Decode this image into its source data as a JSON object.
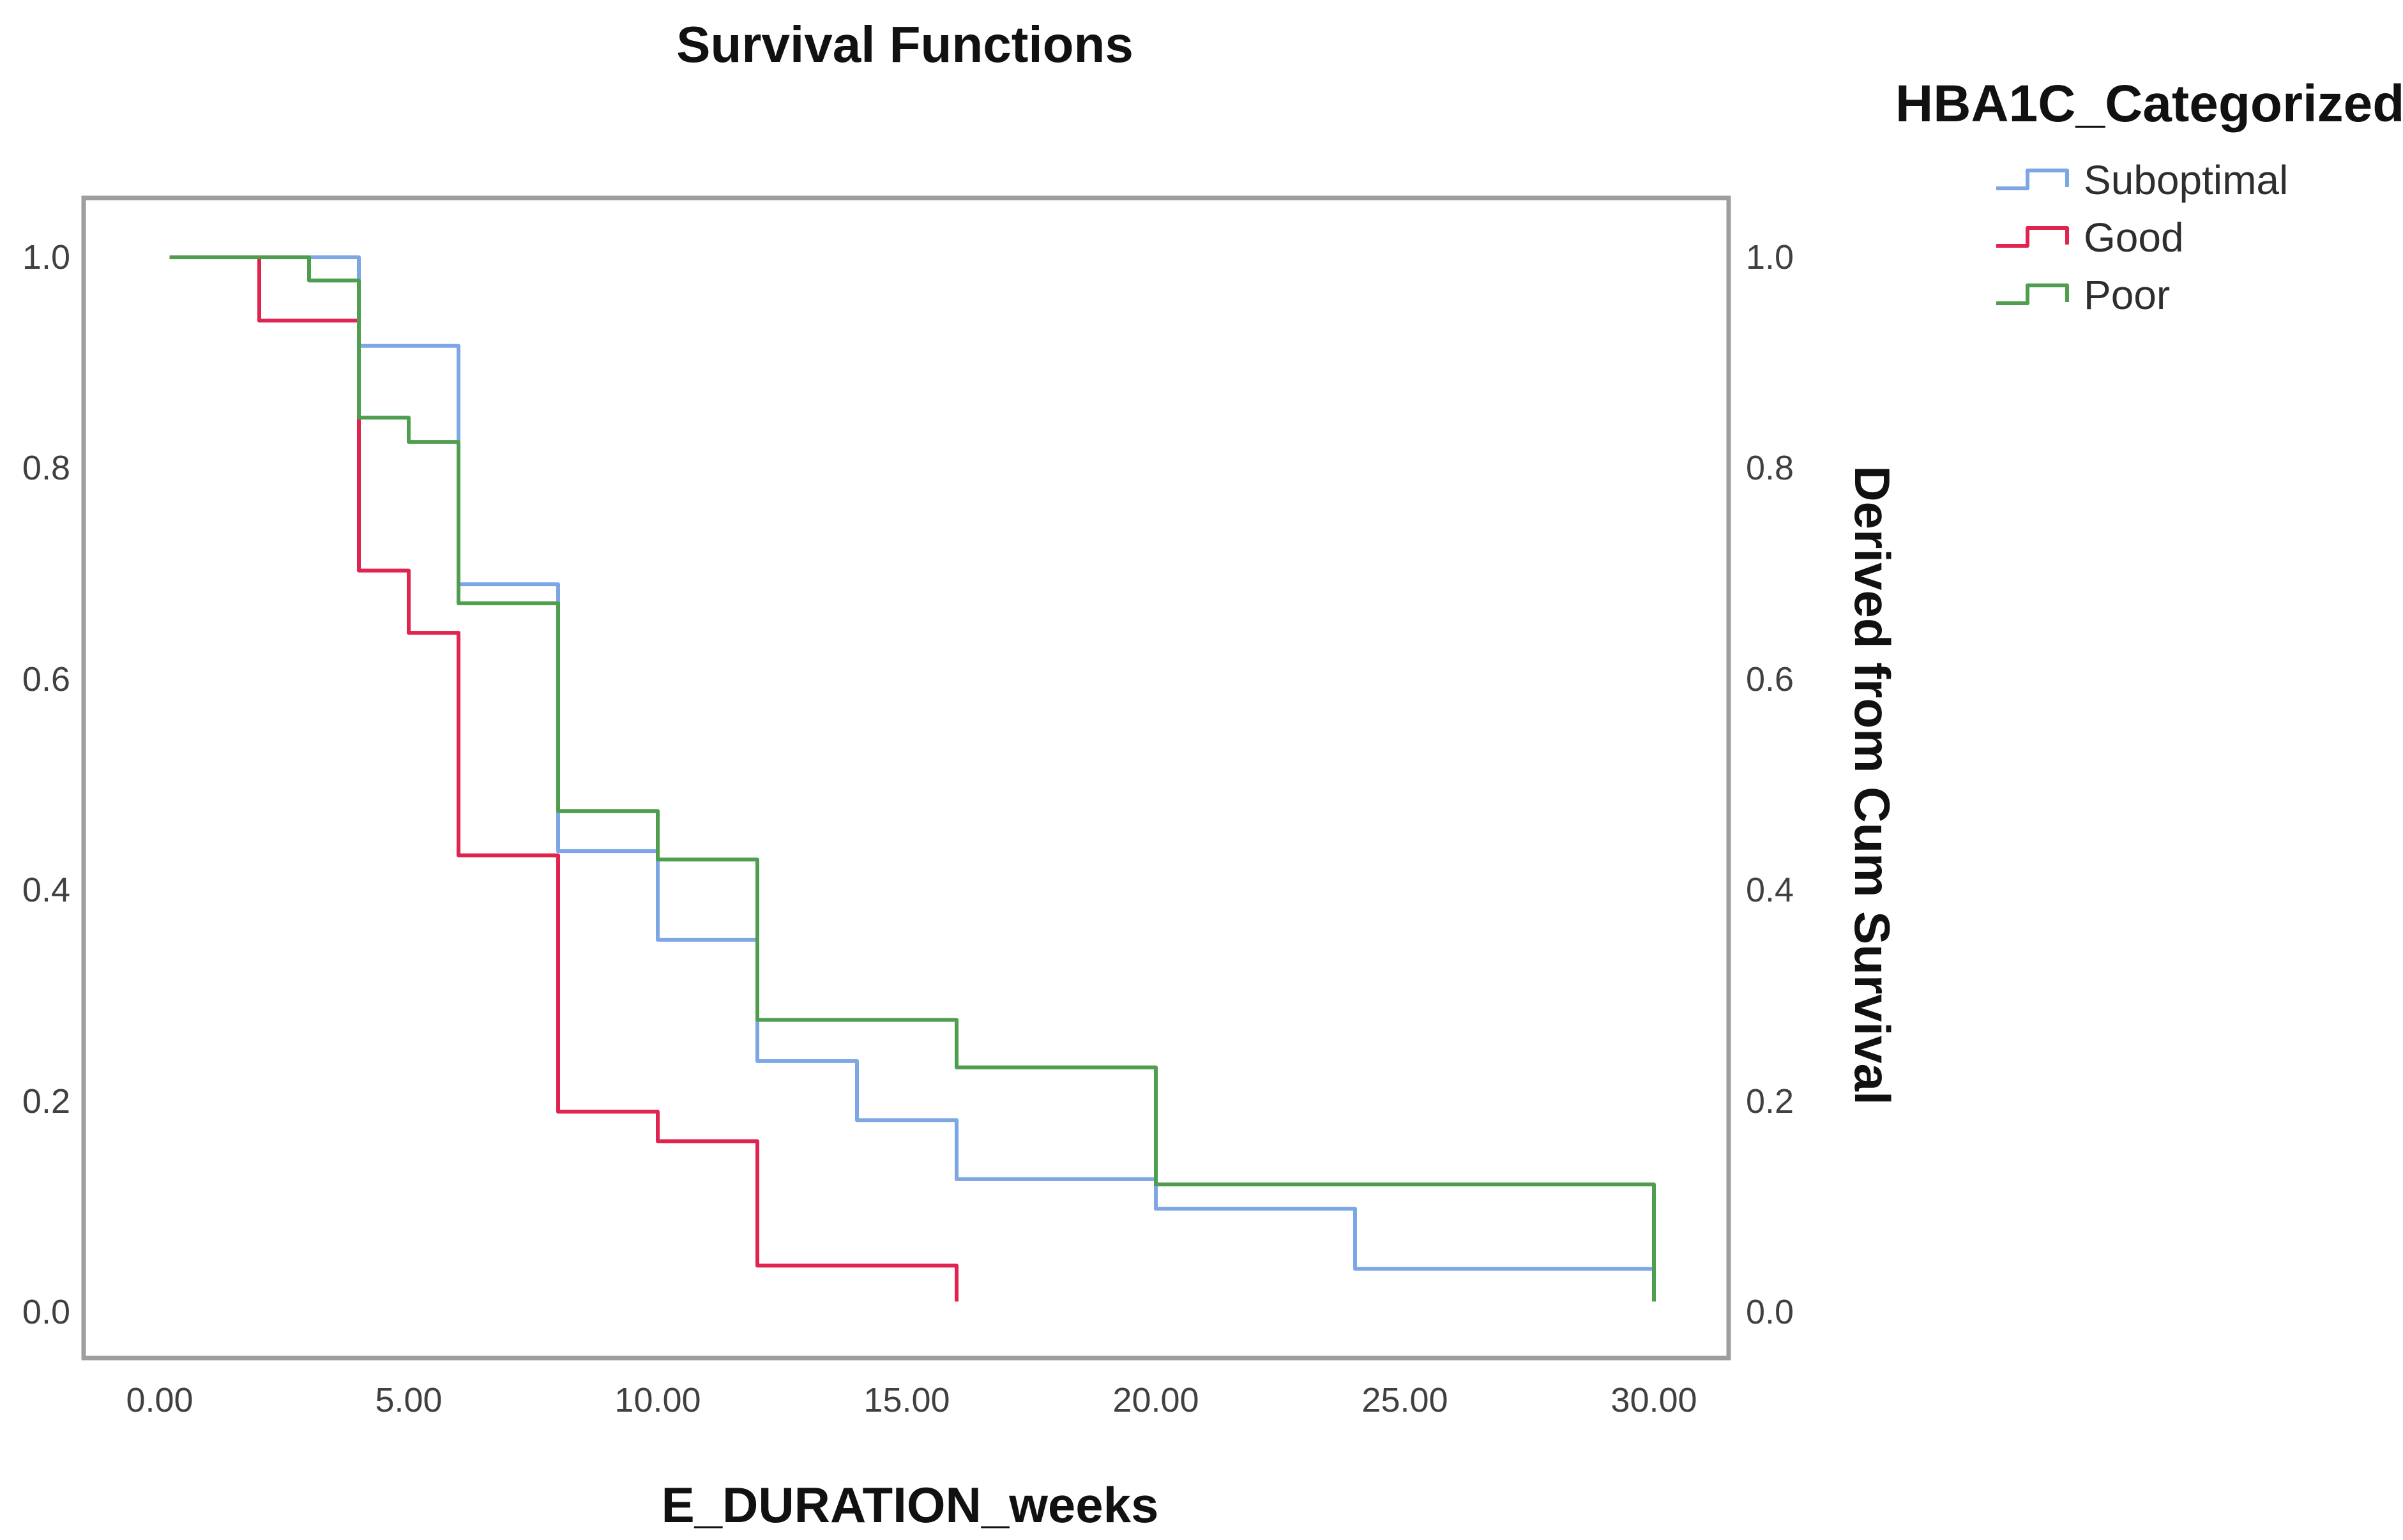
{
  "chart_data": {
    "type": "line",
    "subtype": "kaplan-meier-step",
    "step_mode": "post",
    "title": "Survival Functions",
    "xlabel": "E_DURATION_weeks",
    "ylabel": "Derived from Cum Survival",
    "legend_title": "HBA1C_Categorized",
    "legend_position": "top-right-outside",
    "grid": false,
    "xlim": [
      -1.5,
      31.5
    ],
    "ylim": [
      -0.045,
      1.057
    ],
    "frame_color": "#9E9E9E",
    "background": "#ffffff",
    "xticks": {
      "values": [
        0,
        5,
        10,
        15,
        20,
        25,
        30
      ],
      "labels": [
        "0.00",
        "5.00",
        "10.00",
        "15.00",
        "20.00",
        "25.00",
        "30.00"
      ]
    },
    "yticks": {
      "values": [
        1.0,
        0.8,
        0.6,
        0.4,
        0.2,
        0.0
      ],
      "labels": [
        "1.0",
        "0.8",
        "0.6",
        "0.4",
        "0.2",
        "0.0"
      ]
    },
    "series": [
      {
        "name": "Suboptimal",
        "color": "#7CA6E4",
        "start": [
          0.2,
          1.0
        ],
        "steps": [
          [
            4,
            0.916
          ],
          [
            6,
            0.69
          ],
          [
            8,
            0.437
          ],
          [
            10,
            0.353
          ],
          [
            12,
            0.238
          ],
          [
            14,
            0.182
          ],
          [
            16,
            0.126
          ],
          [
            20,
            0.098
          ],
          [
            24,
            0.041
          ],
          [
            30,
            0.02
          ]
        ]
      },
      {
        "name": "Good",
        "color": "#E0234F",
        "start": [
          0.2,
          1.0
        ],
        "steps": [
          [
            2,
            0.94
          ],
          [
            4,
            0.703
          ],
          [
            5,
            0.644
          ],
          [
            6,
            0.433
          ],
          [
            8,
            0.19
          ],
          [
            10,
            0.162
          ],
          [
            12,
            0.044
          ],
          [
            16,
            0.01
          ]
        ]
      },
      {
        "name": "Poor",
        "color": "#4F9E4F",
        "start": [
          0.2,
          1.0
        ],
        "steps": [
          [
            3,
            0.978
          ],
          [
            4,
            0.848
          ],
          [
            5,
            0.825
          ],
          [
            6,
            0.672
          ],
          [
            8,
            0.475
          ],
          [
            10,
            0.429
          ],
          [
            12,
            0.277
          ],
          [
            16,
            0.232
          ],
          [
            20,
            0.121
          ],
          [
            30,
            0.01
          ]
        ]
      }
    ]
  }
}
